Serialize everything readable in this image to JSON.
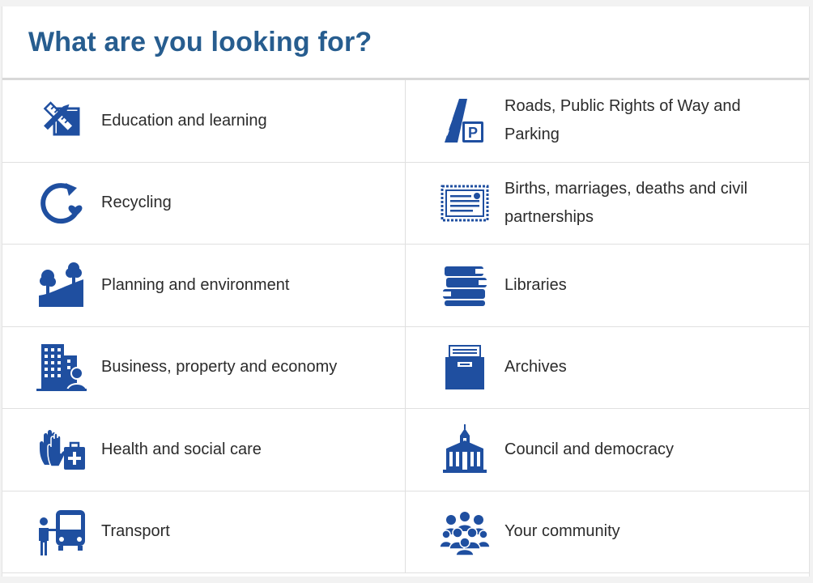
{
  "heading": "What are you looking for?",
  "colors": {
    "accent": "#275d8f",
    "icon": "#1f4fa0",
    "text": "#2b2b2b"
  },
  "tiles": [
    {
      "label": "Education and learning",
      "icon": "ruler-pencil-icon"
    },
    {
      "label": "Roads, Public Rights of Way and Parking",
      "icon": "road-parking-icon"
    },
    {
      "label": "Recycling",
      "icon": "recycling-icon"
    },
    {
      "label": "Births, marriages, deaths and civil partnerships",
      "icon": "certificate-icon"
    },
    {
      "label": "Planning and environment",
      "icon": "trees-hill-icon"
    },
    {
      "label": "Libraries",
      "icon": "books-icon"
    },
    {
      "label": "Business, property and economy",
      "icon": "office-building-icon"
    },
    {
      "label": "Archives",
      "icon": "archive-box-icon"
    },
    {
      "label": "Health and social care",
      "icon": "hands-medical-kit-icon"
    },
    {
      "label": "Council and democracy",
      "icon": "town-hall-icon"
    },
    {
      "label": "Transport",
      "icon": "bus-stop-icon"
    },
    {
      "label": "Your community",
      "icon": "people-group-icon"
    }
  ]
}
